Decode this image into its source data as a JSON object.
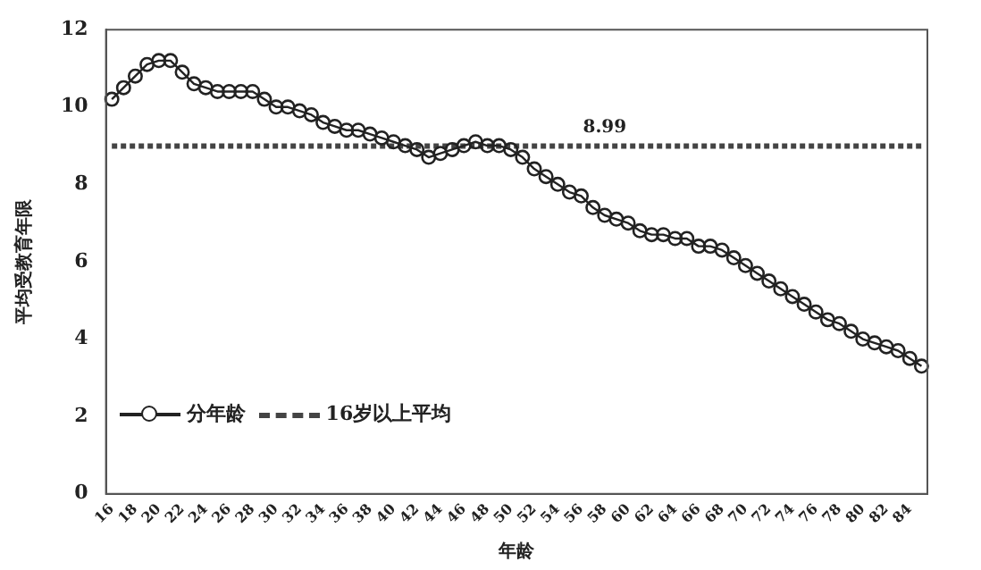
{
  "chart_data": {
    "type": "line",
    "xlabel": "年龄",
    "ylabel": "平均受教育年限",
    "categories": [
      "16",
      null,
      "18",
      null,
      "20",
      null,
      "22",
      null,
      "24",
      null,
      "26",
      null,
      "28",
      null,
      "30",
      null,
      "32",
      null,
      "34",
      null,
      "36",
      null,
      "38",
      null,
      "40",
      null,
      "42",
      null,
      "44",
      null,
      "46",
      null,
      "48",
      null,
      "50",
      null,
      "52",
      null,
      "54",
      null,
      "56",
      null,
      "58",
      null,
      "60",
      null,
      "62",
      null,
      "64",
      null,
      "66",
      null,
      "68",
      null,
      "70",
      null,
      "72",
      null,
      "74",
      null,
      "76",
      null,
      "78",
      null,
      "80",
      null,
      "82",
      null,
      "84",
      null
    ],
    "series": [
      {
        "name": "分年龄",
        "color": "#222222",
        "marker": "circle",
        "line_style": "solid",
        "values": [
          10.2,
          10.5,
          10.8,
          11.1,
          11.2,
          11.2,
          10.9,
          10.6,
          10.5,
          10.4,
          10.4,
          10.4,
          10.4,
          10.2,
          10.0,
          10.0,
          9.9,
          9.8,
          9.6,
          9.5,
          9.4,
          9.4,
          9.3,
          9.2,
          9.1,
          9.0,
          8.9,
          8.7,
          8.8,
          8.9,
          9.0,
          9.1,
          9.0,
          9.0,
          8.9,
          8.7,
          8.4,
          8.2,
          8.0,
          7.8,
          7.7,
          7.4,
          7.2,
          7.1,
          7.0,
          6.8,
          6.7,
          6.7,
          6.6,
          6.6,
          6.4,
          6.4,
          6.3,
          6.1,
          5.9,
          5.7,
          5.5,
          5.3,
          5.1,
          4.9,
          4.7,
          4.5,
          4.4,
          4.2,
          4.0,
          3.9,
          3.8,
          3.7,
          3.5,
          3.3
        ]
      },
      {
        "name": "16岁以上平均",
        "color": "#444444",
        "marker": "none",
        "line_style": "dashed",
        "values": [
          8.99,
          8.99,
          8.99,
          8.99,
          8.99,
          8.99,
          8.99,
          8.99,
          8.99,
          8.99,
          8.99,
          8.99,
          8.99,
          8.99,
          8.99,
          8.99,
          8.99,
          8.99,
          8.99,
          8.99,
          8.99,
          8.99,
          8.99,
          8.99,
          8.99,
          8.99,
          8.99,
          8.99,
          8.99,
          8.99,
          8.99,
          8.99,
          8.99,
          8.99,
          8.99,
          8.99,
          8.99,
          8.99,
          8.99,
          8.99,
          8.99,
          8.99,
          8.99,
          8.99,
          8.99,
          8.99,
          8.99,
          8.99,
          8.99,
          8.99,
          8.99,
          8.99,
          8.99,
          8.99,
          8.99,
          8.99,
          8.99,
          8.99,
          8.99,
          8.99,
          8.99,
          8.99,
          8.99,
          8.99,
          8.99,
          8.99,
          8.99,
          8.99,
          8.99,
          8.99
        ]
      }
    ],
    "annotations": [
      {
        "text": "8.99",
        "x": "58",
        "y": 8.99
      }
    ],
    "ylim": [
      0,
      12
    ],
    "yticks": [
      0,
      2,
      4,
      6,
      8,
      10,
      12
    ],
    "grid": false,
    "legend": "bottom left"
  }
}
